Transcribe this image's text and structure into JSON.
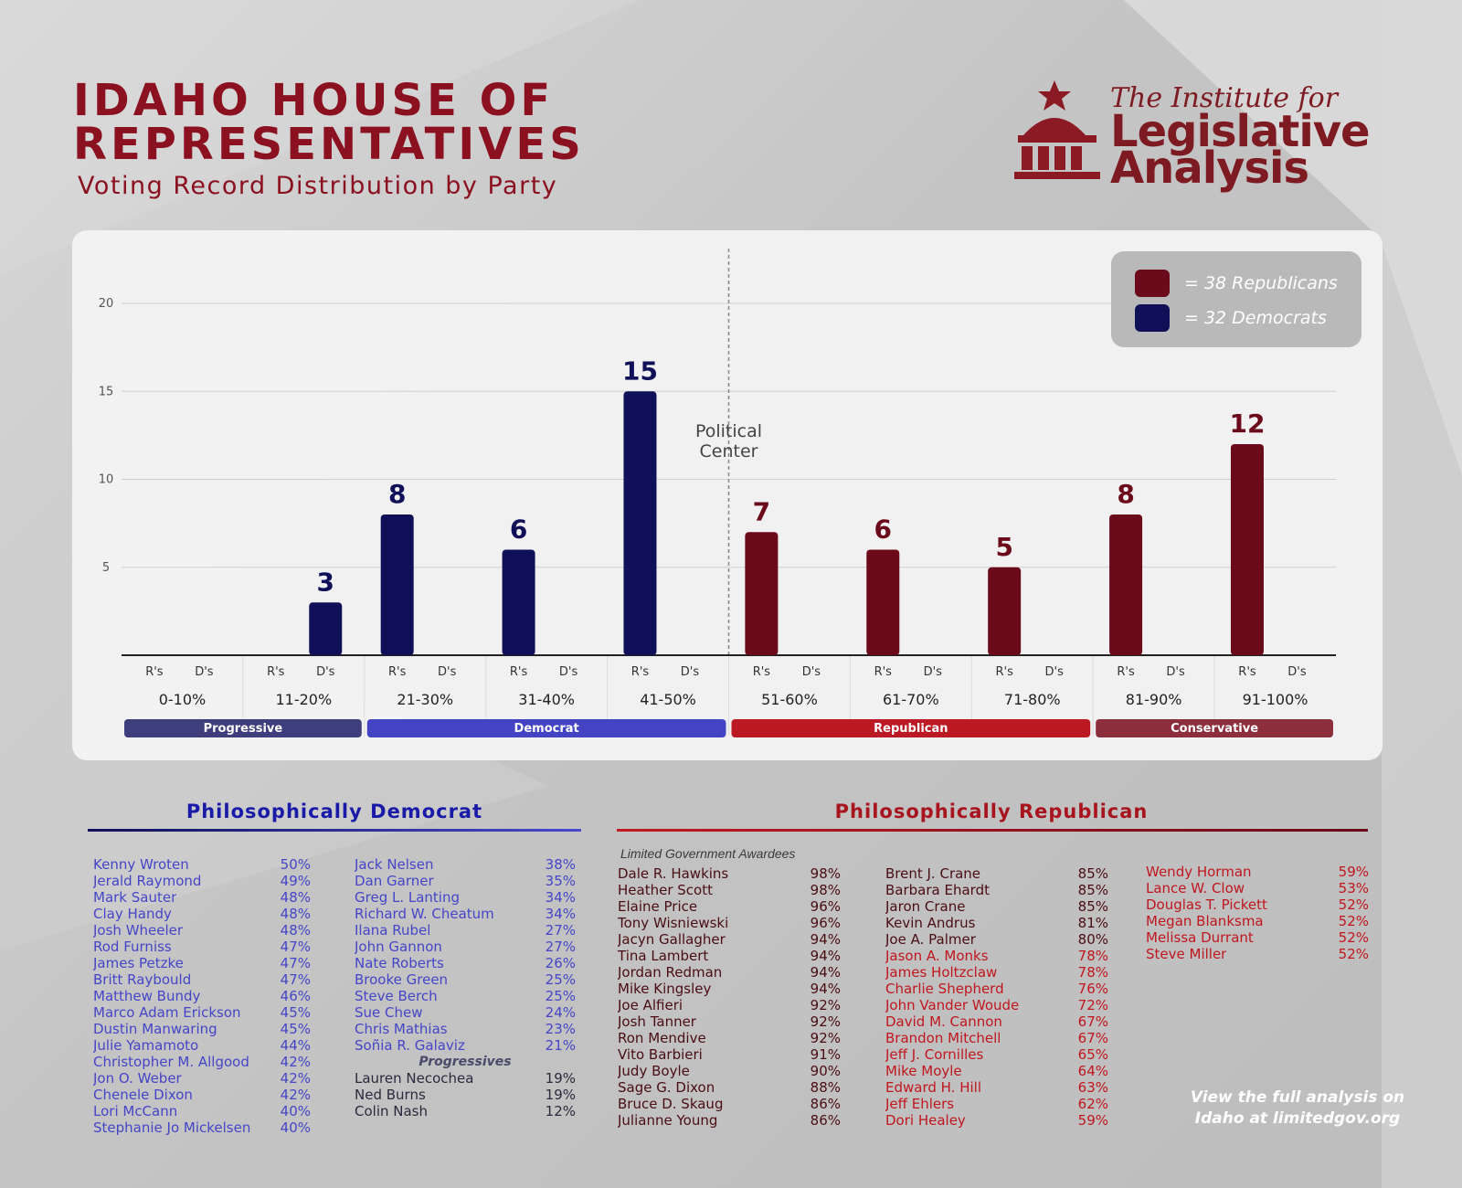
{
  "title_line1": "IDAHO HOUSE OF",
  "title_line2": "REPRESENTATIVES",
  "subtitle": "Voting Record Distribution by Party",
  "logo": {
    "line_top": "The Institute for",
    "line1": "Legislative",
    "line2": "Analysis"
  },
  "colors": {
    "republican": "#6a0a1a",
    "democrat": "#101058",
    "progressive_band": "#3e3e7c",
    "democrat_band": "#4343c4",
    "republican_band": "#bb1a24",
    "conservative_band": "#8c2e3c"
  },
  "legend": [
    {
      "label": "=  38 Republicans",
      "color": "#6a0a1a"
    },
    {
      "label": "=  32 Democrats",
      "color": "#101058"
    }
  ],
  "chart_data": {
    "type": "bar",
    "title": "Voting Record Distribution by Party",
    "ylim": [
      0,
      20
    ],
    "yticks": [
      5,
      10,
      15,
      20
    ],
    "categories": [
      "0-10%",
      "11-20%",
      "21-30%",
      "31-40%",
      "41-50%",
      "51-60%",
      "61-70%",
      "71-80%",
      "81-90%",
      "91-100%"
    ],
    "sub_labels": [
      "R's",
      "D's"
    ],
    "series": [
      {
        "name": "Republicans",
        "slot": 0,
        "values": [
          0,
          0,
          0,
          0,
          0,
          7,
          6,
          5,
          8,
          12
        ]
      },
      {
        "name": "Democrats",
        "slot": 1,
        "values": [
          0,
          3,
          8,
          6,
          15,
          0,
          0,
          0,
          0,
          0
        ]
      }
    ],
    "bar_slot_override": {
      "2": 0,
      "3": 0,
      "4": 0,
      "1": 1
    },
    "center_annotation": "Political Center",
    "bands": [
      {
        "label": "Progressive",
        "from": 0,
        "to": 1,
        "color": "#3e3e7c"
      },
      {
        "label": "Democrat",
        "from": 2,
        "to": 4,
        "color": "#4343c4"
      },
      {
        "label": "Republican",
        "from": 5,
        "to": 7,
        "color": "#bb1a24"
      },
      {
        "label": "Conservative",
        "from": 8,
        "to": 9,
        "color": "#8c2e3c"
      }
    ]
  },
  "dem_section": {
    "title": "Philosophically Democrat",
    "col1": [
      [
        "Kenny Wroten",
        "50%"
      ],
      [
        "Jerald Raymond",
        "49%"
      ],
      [
        "Mark Sauter",
        "48%"
      ],
      [
        "Clay Handy",
        "48%"
      ],
      [
        "Josh Wheeler",
        "48%"
      ],
      [
        "Rod Furniss",
        "47%"
      ],
      [
        "James Petzke",
        "47%"
      ],
      [
        "Britt Raybould",
        "47%"
      ],
      [
        "Matthew Bundy",
        "46%"
      ],
      [
        "Marco Adam Erickson",
        "45%"
      ],
      [
        "Dustin Manwaring",
        "45%"
      ],
      [
        "Julie Yamamoto",
        "44%"
      ],
      [
        "Christopher M. Allgood",
        "42%"
      ],
      [
        "Jon O. Weber",
        "42%"
      ],
      [
        "Chenele Dixon",
        "42%"
      ],
      [
        "Lori McCann",
        "40%"
      ],
      [
        "Stephanie Jo Mickelsen",
        "40%"
      ]
    ],
    "col2": [
      [
        "Jack Nelsen",
        "38%"
      ],
      [
        "Dan Garner",
        "35%"
      ],
      [
        "Greg L. Lanting",
        "34%"
      ],
      [
        "Richard W. Cheatum",
        "34%"
      ],
      [
        "Ilana Rubel",
        "27%"
      ],
      [
        "John Gannon",
        "27%"
      ],
      [
        "Nate Roberts",
        "26%"
      ],
      [
        "Brooke Green",
        "25%"
      ],
      [
        "Steve Berch",
        "25%"
      ],
      [
        "Sue Chew",
        "24%"
      ],
      [
        "Chris Mathias",
        "23%"
      ],
      [
        "Soñia R. Galaviz",
        "21%"
      ]
    ],
    "progressives_label": "Progressives",
    "progressives": [
      [
        "Lauren Necochea",
        "19%"
      ],
      [
        "Ned Burns",
        "19%"
      ],
      [
        "Colin Nash",
        "12%"
      ]
    ]
  },
  "rep_section": {
    "title": "Philosophically Republican",
    "awardees_label": "Limited Government Awardees",
    "col1": [
      [
        "Dale R. Hawkins",
        "98%"
      ],
      [
        "Heather Scott",
        "98%"
      ],
      [
        "Elaine Price",
        "96%"
      ],
      [
        "Tony Wisniewski",
        "96%"
      ],
      [
        "Jacyn Gallagher",
        "94%"
      ],
      [
        "Tina Lambert",
        "94%"
      ],
      [
        "Jordan Redman",
        "94%"
      ],
      [
        "Mike Kingsley",
        "94%"
      ],
      [
        "Joe Alfieri",
        "92%"
      ],
      [
        "Josh Tanner",
        "92%"
      ],
      [
        "Ron Mendive",
        "92%"
      ],
      [
        "Vito Barbieri",
        "91%"
      ],
      [
        "Judy Boyle",
        "90%"
      ],
      [
        "Sage G. Dixon",
        "88%"
      ],
      [
        "Bruce D. Skaug",
        "86%"
      ],
      [
        "Julianne Young",
        "86%"
      ]
    ],
    "col2_dark": [
      [
        "Brent J. Crane",
        "85%"
      ],
      [
        "Barbara Ehardt",
        "85%"
      ],
      [
        "Jaron Crane",
        "85%"
      ],
      [
        "Kevin Andrus",
        "81%"
      ],
      [
        "Joe A. Palmer",
        "80%"
      ]
    ],
    "col2_red": [
      [
        "Jason A. Monks",
        "78%"
      ],
      [
        "James Holtzclaw",
        "78%"
      ],
      [
        "Charlie Shepherd",
        "76%"
      ],
      [
        "John Vander Woude",
        "72%"
      ],
      [
        "David M. Cannon",
        "67%"
      ],
      [
        "Brandon Mitchell",
        "67%"
      ],
      [
        "Jeff J. Cornilles",
        "65%"
      ],
      [
        "Mike Moyle",
        "64%"
      ],
      [
        "Edward H. Hill",
        "63%"
      ],
      [
        "Jeff Ehlers",
        "62%"
      ],
      [
        "Dori Healey",
        "59%"
      ]
    ],
    "col3": [
      [
        "Wendy Horman",
        "59%"
      ],
      [
        "Lance W. Clow",
        "53%"
      ],
      [
        "Douglas T. Pickett",
        "52%"
      ],
      [
        "Megan Blanksma",
        "52%"
      ],
      [
        "Melissa Durrant",
        "52%"
      ],
      [
        "Steve Miller",
        "52%"
      ]
    ]
  },
  "footer_line1": "View the full analysis on",
  "footer_line2": "Idaho at limitedgov.org"
}
